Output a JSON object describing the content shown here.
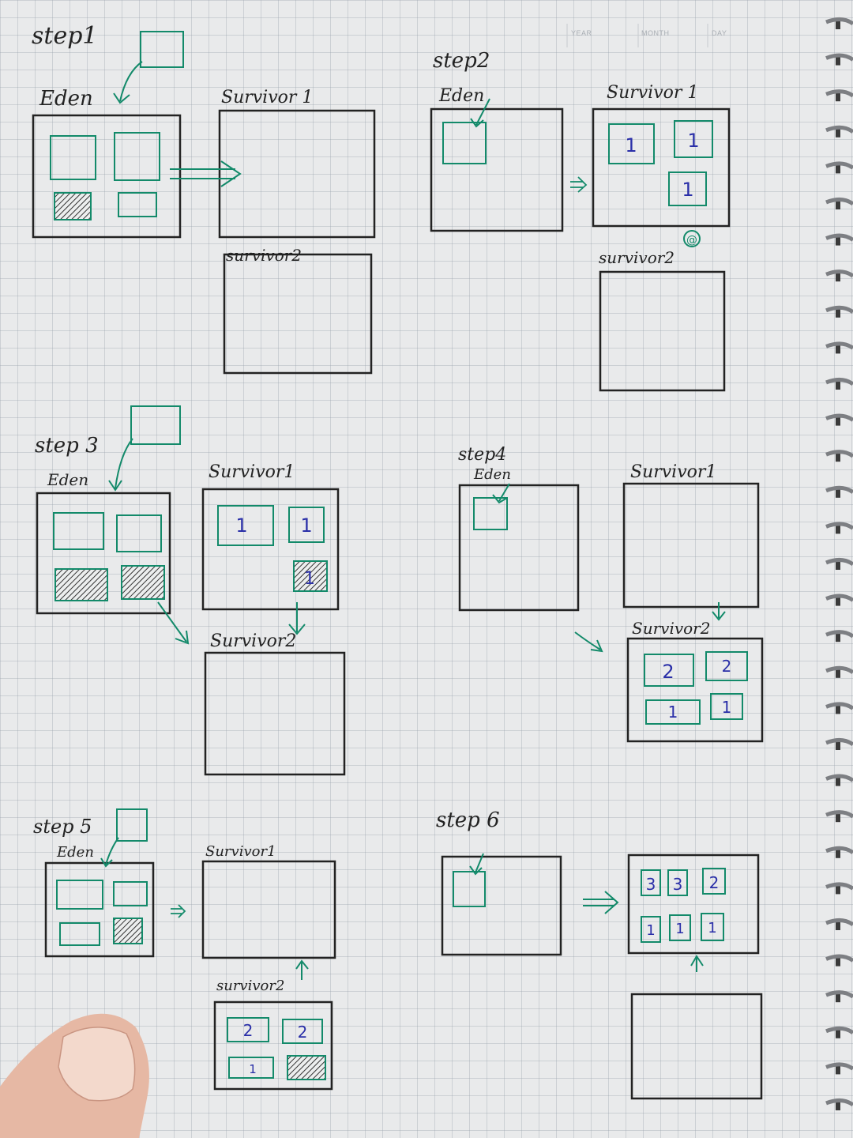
{
  "header": {
    "year": "YEAR",
    "month": "MONTH",
    "day": "DAY"
  },
  "steps": [
    {
      "title": "step1",
      "eden": "Eden",
      "s1": "Survivor 1",
      "s2": "survivor2"
    },
    {
      "title": "step2",
      "eden": "Eden",
      "s1": "Survivor 1",
      "s2": "survivor2",
      "mark": "@"
    },
    {
      "title": "step 3",
      "eden": "Eden",
      "s1": "Survivor1",
      "s2": "Survivor2"
    },
    {
      "title": "step4",
      "eden": "Eden",
      "s1": "Survivor1",
      "s2": "Survivor2"
    },
    {
      "title": "step 5",
      "eden": "Eden",
      "s1": "Survivor1",
      "s2": "survivor2"
    },
    {
      "title": "step 6"
    }
  ],
  "objects": {
    "step2_s1": [
      "1",
      "1",
      "1"
    ],
    "step3_s1": [
      "1",
      "1",
      "1"
    ],
    "step4_s2": [
      "2",
      "2",
      "1",
      "1"
    ],
    "step5_s2": [
      "2",
      "2",
      "1"
    ],
    "step6_result": [
      "3",
      "3",
      "2",
      "1",
      "1",
      "1"
    ]
  },
  "colors": {
    "ink": "#222222",
    "green": "#138a6a",
    "number": "#2a2fa8",
    "paper": "#e9eaeb"
  }
}
